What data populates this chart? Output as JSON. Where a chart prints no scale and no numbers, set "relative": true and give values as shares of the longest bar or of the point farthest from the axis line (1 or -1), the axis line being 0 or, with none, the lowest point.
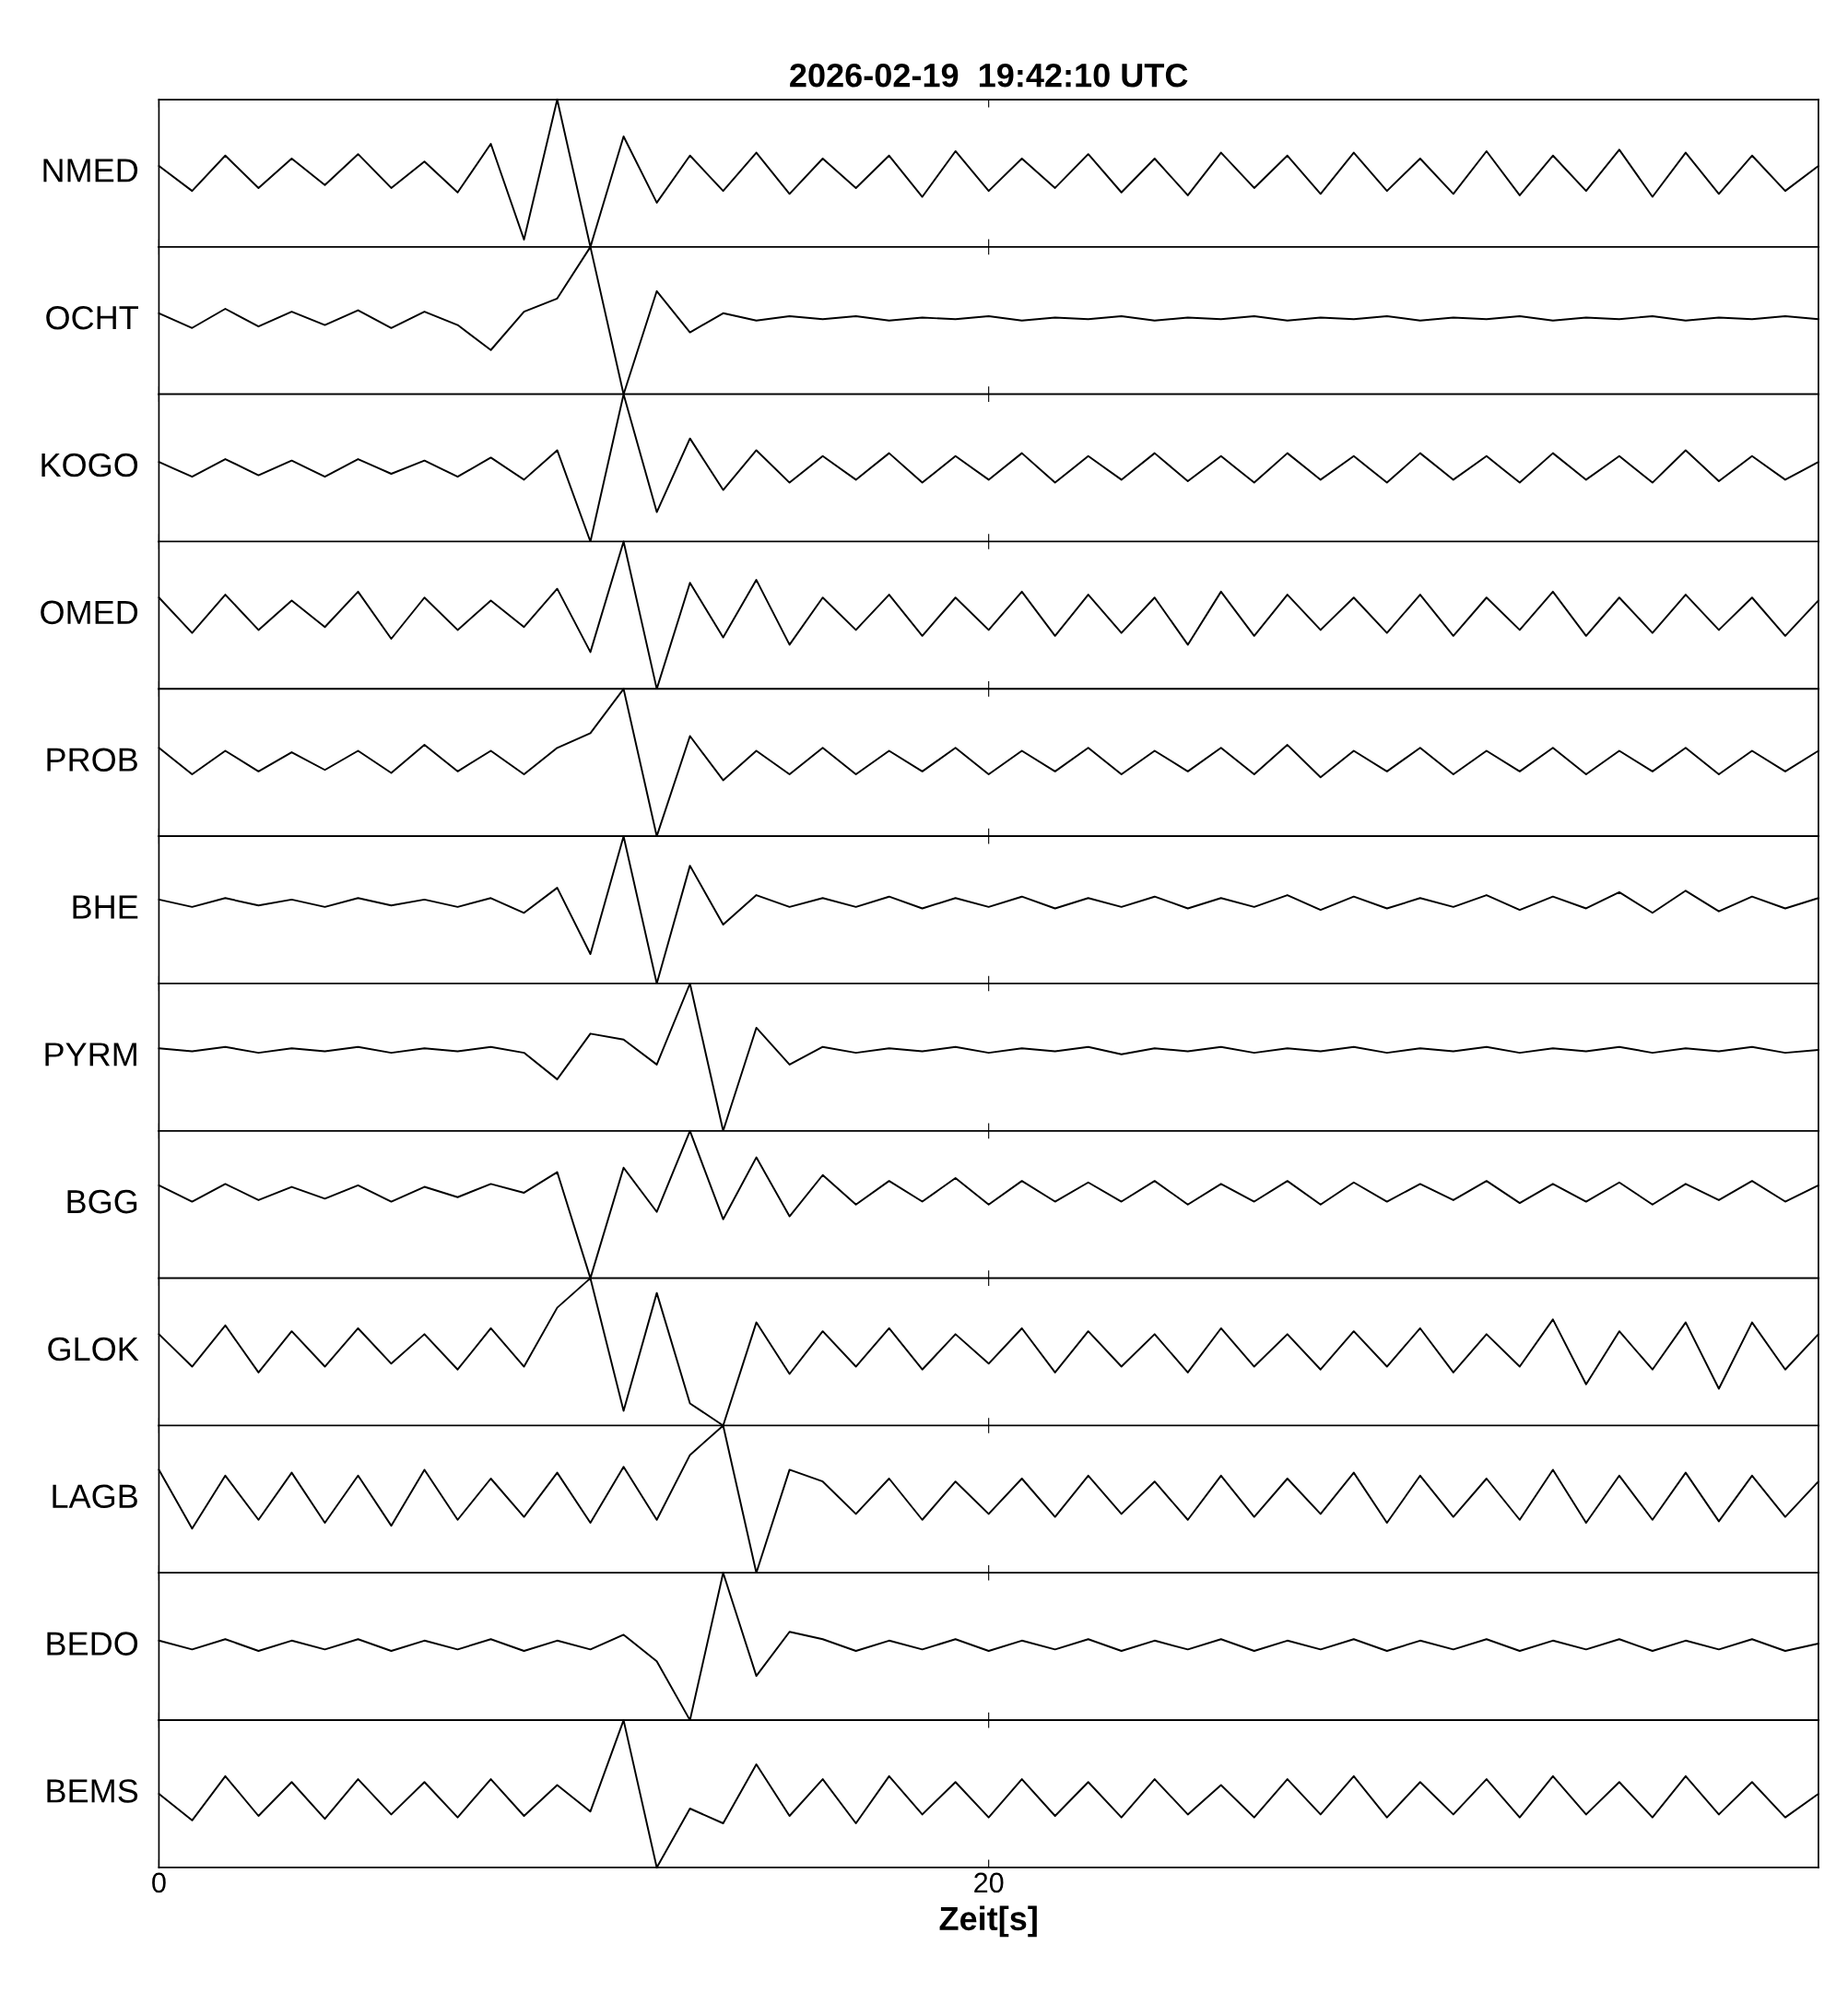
{
  "chart_data": [
    {
      "type": "line",
      "relative": true,
      "title": "2026-02-19  19:42:10 UTC",
      "ylabel": "NMED",
      "xlim": [
        0,
        40
      ],
      "xticks": [
        0,
        20
      ],
      "tick_labels": false,
      "x": [
        0,
        0.8,
        1.6,
        2.4,
        3.2,
        4,
        4.8,
        5.6,
        6.4,
        7.2,
        8,
        8.8,
        9.6,
        10.4,
        11.2,
        12,
        12.8,
        13.6,
        14.4,
        15.2,
        16,
        16.8,
        17.6,
        18.4,
        19.2,
        20,
        20.8,
        21.6,
        22.4,
        23.2,
        24,
        24.8,
        25.6,
        26.4,
        27.2,
        28,
        28.8,
        29.6,
        30.4,
        31.2,
        32,
        32.8,
        33.6,
        34.4,
        35.2,
        36,
        36.8,
        37.6,
        38.4,
        39.2,
        40
      ],
      "series": [
        {
          "color": "#000000",
          "values": [
            0.55,
            0.38,
            0.62,
            0.4,
            0.6,
            0.42,
            0.63,
            0.4,
            0.58,
            0.37,
            0.7,
            0.05,
            1.0,
            0.0,
            0.75,
            0.3,
            0.62,
            0.38,
            0.64,
            0.36,
            0.6,
            0.4,
            0.62,
            0.34,
            0.65,
            0.38,
            0.6,
            0.4,
            0.63,
            0.37,
            0.6,
            0.35,
            0.64,
            0.4,
            0.62,
            0.36,
            0.64,
            0.38,
            0.6,
            0.36,
            0.65,
            0.35,
            0.62,
            0.38,
            0.66,
            0.34,
            0.64,
            0.36,
            0.62,
            0.38,
            0.55
          ]
        }
      ]
    },
    {
      "type": "line",
      "relative": true,
      "ylabel": "OCHT",
      "xlim": [
        0,
        40
      ],
      "xticks": [
        0,
        20
      ],
      "tick_labels": false,
      "x": [
        0,
        0.8,
        1.6,
        2.4,
        3.2,
        4,
        4.8,
        5.6,
        6.4,
        7.2,
        8,
        8.8,
        9.6,
        10.4,
        11.2,
        12,
        12.8,
        13.6,
        14.4,
        15.2,
        16,
        16.8,
        17.6,
        18.4,
        19.2,
        20,
        20.8,
        21.6,
        22.4,
        23.2,
        24,
        24.8,
        25.6,
        26.4,
        27.2,
        28,
        28.8,
        29.6,
        30.4,
        31.2,
        32,
        32.8,
        33.6,
        34.4,
        35.2,
        36,
        36.8,
        37.6,
        38.4,
        39.2,
        40
      ],
      "series": [
        {
          "color": "#000000",
          "values": [
            0.55,
            0.45,
            0.58,
            0.46,
            0.56,
            0.47,
            0.57,
            0.45,
            0.56,
            0.47,
            0.3,
            0.56,
            0.65,
            1.0,
            0.0,
            0.7,
            0.42,
            0.55,
            0.5,
            0.53,
            0.51,
            0.53,
            0.5,
            0.52,
            0.51,
            0.53,
            0.5,
            0.52,
            0.51,
            0.53,
            0.5,
            0.52,
            0.51,
            0.53,
            0.5,
            0.52,
            0.51,
            0.53,
            0.5,
            0.52,
            0.51,
            0.53,
            0.5,
            0.52,
            0.51,
            0.53,
            0.5,
            0.52,
            0.51,
            0.53,
            0.51
          ]
        }
      ]
    },
    {
      "type": "line",
      "relative": true,
      "ylabel": "KOGO",
      "xlim": [
        0,
        40
      ],
      "xticks": [
        0,
        20
      ],
      "tick_labels": false,
      "x": [
        0,
        0.8,
        1.6,
        2.4,
        3.2,
        4,
        4.8,
        5.6,
        6.4,
        7.2,
        8,
        8.8,
        9.6,
        10.4,
        11.2,
        12,
        12.8,
        13.6,
        14.4,
        15.2,
        16,
        16.8,
        17.6,
        18.4,
        19.2,
        20,
        20.8,
        21.6,
        22.4,
        23.2,
        24,
        24.8,
        25.6,
        26.4,
        27.2,
        28,
        28.8,
        29.6,
        30.4,
        31.2,
        32,
        32.8,
        33.6,
        34.4,
        35.2,
        36,
        36.8,
        37.6,
        38.4,
        39.2,
        40
      ],
      "series": [
        {
          "color": "#000000",
          "values": [
            0.54,
            0.44,
            0.56,
            0.45,
            0.55,
            0.44,
            0.56,
            0.46,
            0.55,
            0.44,
            0.57,
            0.42,
            0.62,
            0.0,
            1.0,
            0.2,
            0.7,
            0.35,
            0.62,
            0.4,
            0.58,
            0.42,
            0.6,
            0.4,
            0.58,
            0.42,
            0.6,
            0.4,
            0.58,
            0.42,
            0.6,
            0.41,
            0.58,
            0.4,
            0.6,
            0.42,
            0.58,
            0.4,
            0.6,
            0.42,
            0.58,
            0.4,
            0.6,
            0.42,
            0.58,
            0.4,
            0.62,
            0.41,
            0.58,
            0.42,
            0.54
          ]
        }
      ]
    },
    {
      "type": "line",
      "relative": true,
      "ylabel": "OMED",
      "xlim": [
        0,
        40
      ],
      "xticks": [
        0,
        20
      ],
      "tick_labels": false,
      "x": [
        0,
        0.8,
        1.6,
        2.4,
        3.2,
        4,
        4.8,
        5.6,
        6.4,
        7.2,
        8,
        8.8,
        9.6,
        10.4,
        11.2,
        12,
        12.8,
        13.6,
        14.4,
        15.2,
        16,
        16.8,
        17.6,
        18.4,
        19.2,
        20,
        20.8,
        21.6,
        22.4,
        23.2,
        24,
        24.8,
        25.6,
        26.4,
        27.2,
        28,
        28.8,
        29.6,
        30.4,
        31.2,
        32,
        32.8,
        33.6,
        34.4,
        35.2,
        36,
        36.8,
        37.6,
        38.4,
        39.2,
        40
      ],
      "series": [
        {
          "color": "#000000",
          "values": [
            0.62,
            0.38,
            0.64,
            0.4,
            0.6,
            0.42,
            0.66,
            0.34,
            0.62,
            0.4,
            0.6,
            0.42,
            0.68,
            0.25,
            1.0,
            0.0,
            0.72,
            0.35,
            0.74,
            0.3,
            0.62,
            0.4,
            0.64,
            0.36,
            0.62,
            0.4,
            0.66,
            0.36,
            0.64,
            0.38,
            0.62,
            0.3,
            0.66,
            0.36,
            0.64,
            0.4,
            0.62,
            0.38,
            0.64,
            0.36,
            0.62,
            0.4,
            0.66,
            0.36,
            0.62,
            0.38,
            0.64,
            0.4,
            0.62,
            0.36,
            0.6
          ]
        }
      ]
    },
    {
      "type": "line",
      "relative": true,
      "ylabel": "PROB",
      "xlim": [
        0,
        40
      ],
      "xticks": [
        0,
        20
      ],
      "tick_labels": false,
      "x": [
        0,
        0.8,
        1.6,
        2.4,
        3.2,
        4,
        4.8,
        5.6,
        6.4,
        7.2,
        8,
        8.8,
        9.6,
        10.4,
        11.2,
        12,
        12.8,
        13.6,
        14.4,
        15.2,
        16,
        16.8,
        17.6,
        18.4,
        19.2,
        20,
        20.8,
        21.6,
        22.4,
        23.2,
        24,
        24.8,
        25.6,
        26.4,
        27.2,
        28,
        28.8,
        29.6,
        30.4,
        31.2,
        32,
        32.8,
        33.6,
        34.4,
        35.2,
        36,
        36.8,
        37.6,
        38.4,
        39.2,
        40
      ],
      "series": [
        {
          "color": "#000000",
          "values": [
            0.6,
            0.42,
            0.58,
            0.44,
            0.57,
            0.45,
            0.58,
            0.43,
            0.62,
            0.44,
            0.58,
            0.42,
            0.6,
            0.7,
            1.0,
            0.0,
            0.68,
            0.38,
            0.58,
            0.42,
            0.6,
            0.42,
            0.58,
            0.44,
            0.6,
            0.42,
            0.58,
            0.44,
            0.6,
            0.42,
            0.58,
            0.44,
            0.6,
            0.42,
            0.62,
            0.4,
            0.58,
            0.44,
            0.6,
            0.42,
            0.58,
            0.44,
            0.6,
            0.42,
            0.58,
            0.44,
            0.6,
            0.42,
            0.58,
            0.44,
            0.58
          ]
        }
      ]
    },
    {
      "type": "line",
      "relative": true,
      "ylabel": "BHE",
      "xlim": [
        0,
        40
      ],
      "xticks": [
        0,
        20
      ],
      "tick_labels": false,
      "x": [
        0,
        0.8,
        1.6,
        2.4,
        3.2,
        4,
        4.8,
        5.6,
        6.4,
        7.2,
        8,
        8.8,
        9.6,
        10.4,
        11.2,
        12,
        12.8,
        13.6,
        14.4,
        15.2,
        16,
        16.8,
        17.6,
        18.4,
        19.2,
        20,
        20.8,
        21.6,
        22.4,
        23.2,
        24,
        24.8,
        25.6,
        26.4,
        27.2,
        28,
        28.8,
        29.6,
        30.4,
        31.2,
        32,
        32.8,
        33.6,
        34.4,
        35.2,
        36,
        36.8,
        37.6,
        38.4,
        39.2,
        40
      ],
      "series": [
        {
          "color": "#000000",
          "values": [
            0.57,
            0.52,
            0.58,
            0.53,
            0.57,
            0.52,
            0.58,
            0.53,
            0.57,
            0.52,
            0.58,
            0.48,
            0.65,
            0.2,
            1.0,
            0.0,
            0.8,
            0.4,
            0.6,
            0.52,
            0.58,
            0.52,
            0.59,
            0.51,
            0.58,
            0.52,
            0.59,
            0.51,
            0.58,
            0.52,
            0.59,
            0.51,
            0.58,
            0.52,
            0.6,
            0.5,
            0.59,
            0.51,
            0.58,
            0.52,
            0.6,
            0.5,
            0.59,
            0.51,
            0.62,
            0.48,
            0.63,
            0.49,
            0.59,
            0.51,
            0.58
          ]
        }
      ]
    },
    {
      "type": "line",
      "relative": true,
      "ylabel": "PYRM",
      "xlim": [
        0,
        40
      ],
      "xticks": [
        0,
        20
      ],
      "tick_labels": false,
      "x": [
        0,
        0.8,
        1.6,
        2.4,
        3.2,
        4,
        4.8,
        5.6,
        6.4,
        7.2,
        8,
        8.8,
        9.6,
        10.4,
        11.2,
        12,
        12.8,
        13.6,
        14.4,
        15.2,
        16,
        16.8,
        17.6,
        18.4,
        19.2,
        20,
        20.8,
        21.6,
        22.4,
        23.2,
        24,
        24.8,
        25.6,
        26.4,
        27.2,
        28,
        28.8,
        29.6,
        30.4,
        31.2,
        32,
        32.8,
        33.6,
        34.4,
        35.2,
        36,
        36.8,
        37.6,
        38.4,
        39.2,
        40
      ],
      "series": [
        {
          "color": "#000000",
          "values": [
            0.56,
            0.54,
            0.57,
            0.53,
            0.56,
            0.54,
            0.57,
            0.53,
            0.56,
            0.54,
            0.57,
            0.53,
            0.35,
            0.66,
            0.62,
            0.45,
            1.0,
            0.0,
            0.7,
            0.45,
            0.57,
            0.53,
            0.56,
            0.54,
            0.57,
            0.53,
            0.56,
            0.54,
            0.57,
            0.52,
            0.56,
            0.54,
            0.57,
            0.53,
            0.56,
            0.54,
            0.57,
            0.53,
            0.56,
            0.54,
            0.57,
            0.53,
            0.56,
            0.54,
            0.57,
            0.53,
            0.56,
            0.54,
            0.57,
            0.53,
            0.55
          ]
        }
      ]
    },
    {
      "type": "line",
      "relative": true,
      "ylabel": "BGG",
      "xlim": [
        0,
        40
      ],
      "xticks": [
        0,
        20
      ],
      "tick_labels": false,
      "x": [
        0,
        0.8,
        1.6,
        2.4,
        3.2,
        4,
        4.8,
        5.6,
        6.4,
        7.2,
        8,
        8.8,
        9.6,
        10.4,
        11.2,
        12,
        12.8,
        13.6,
        14.4,
        15.2,
        16,
        16.8,
        17.6,
        18.4,
        19.2,
        20,
        20.8,
        21.6,
        22.4,
        23.2,
        24,
        24.8,
        25.6,
        26.4,
        27.2,
        28,
        28.8,
        29.6,
        30.4,
        31.2,
        32,
        32.8,
        33.6,
        34.4,
        35.2,
        36,
        36.8,
        37.6,
        38.4,
        39.2,
        40
      ],
      "series": [
        {
          "color": "#000000",
          "values": [
            0.63,
            0.52,
            0.64,
            0.53,
            0.62,
            0.54,
            0.63,
            0.52,
            0.62,
            0.55,
            0.64,
            0.58,
            0.72,
            0.0,
            0.75,
            0.45,
            1.0,
            0.4,
            0.82,
            0.42,
            0.7,
            0.5,
            0.66,
            0.52,
            0.68,
            0.5,
            0.66,
            0.52,
            0.65,
            0.52,
            0.66,
            0.5,
            0.64,
            0.52,
            0.66,
            0.5,
            0.65,
            0.52,
            0.64,
            0.53,
            0.66,
            0.51,
            0.64,
            0.52,
            0.65,
            0.5,
            0.64,
            0.53,
            0.66,
            0.52,
            0.63
          ]
        }
      ]
    },
    {
      "type": "line",
      "relative": true,
      "ylabel": "GLOK",
      "xlim": [
        0,
        40
      ],
      "xticks": [
        0,
        20
      ],
      "tick_labels": false,
      "x": [
        0,
        0.8,
        1.6,
        2.4,
        3.2,
        4,
        4.8,
        5.6,
        6.4,
        7.2,
        8,
        8.8,
        9.6,
        10.4,
        11.2,
        12,
        12.8,
        13.6,
        14.4,
        15.2,
        16,
        16.8,
        17.6,
        18.4,
        19.2,
        20,
        20.8,
        21.6,
        22.4,
        23.2,
        24,
        24.8,
        25.6,
        26.4,
        27.2,
        28,
        28.8,
        29.6,
        30.4,
        31.2,
        32,
        32.8,
        33.6,
        34.4,
        35.2,
        36,
        36.8,
        37.6,
        38.4,
        39.2,
        40
      ],
      "series": [
        {
          "color": "#000000",
          "values": [
            0.62,
            0.4,
            0.68,
            0.36,
            0.64,
            0.4,
            0.66,
            0.42,
            0.62,
            0.38,
            0.66,
            0.4,
            0.8,
            1.0,
            0.1,
            0.9,
            0.15,
            0.0,
            0.7,
            0.35,
            0.64,
            0.4,
            0.66,
            0.38,
            0.62,
            0.42,
            0.66,
            0.36,
            0.64,
            0.4,
            0.62,
            0.36,
            0.66,
            0.4,
            0.62,
            0.38,
            0.64,
            0.4,
            0.66,
            0.36,
            0.62,
            0.4,
            0.72,
            0.28,
            0.64,
            0.38,
            0.7,
            0.25,
            0.7,
            0.38,
            0.62
          ]
        }
      ]
    },
    {
      "type": "line",
      "relative": true,
      "ylabel": "LAGB",
      "xlim": [
        0,
        40
      ],
      "xticks": [
        0,
        20
      ],
      "tick_labels": false,
      "x": [
        0,
        0.8,
        1.6,
        2.4,
        3.2,
        4,
        4.8,
        5.6,
        6.4,
        7.2,
        8,
        8.8,
        9.6,
        10.4,
        11.2,
        12,
        12.8,
        13.6,
        14.4,
        15.2,
        16,
        16.8,
        17.6,
        18.4,
        19.2,
        20,
        20.8,
        21.6,
        22.4,
        23.2,
        24,
        24.8,
        25.6,
        26.4,
        27.2,
        28,
        28.8,
        29.6,
        30.4,
        31.2,
        32,
        32.8,
        33.6,
        34.4,
        35.2,
        36,
        36.8,
        37.6,
        38.4,
        39.2,
        40
      ],
      "series": [
        {
          "color": "#000000",
          "values": [
            0.7,
            0.3,
            0.66,
            0.36,
            0.68,
            0.34,
            0.66,
            0.32,
            0.7,
            0.36,
            0.64,
            0.38,
            0.68,
            0.34,
            0.72,
            0.36,
            0.8,
            1.0,
            0.0,
            0.7,
            0.62,
            0.4,
            0.64,
            0.36,
            0.62,
            0.4,
            0.64,
            0.38,
            0.66,
            0.4,
            0.62,
            0.36,
            0.66,
            0.38,
            0.64,
            0.4,
            0.68,
            0.34,
            0.66,
            0.38,
            0.64,
            0.36,
            0.7,
            0.34,
            0.66,
            0.36,
            0.68,
            0.35,
            0.66,
            0.38,
            0.62
          ]
        }
      ]
    },
    {
      "type": "line",
      "relative": true,
      "ylabel": "BEDO",
      "xlim": [
        0,
        40
      ],
      "xticks": [
        0,
        20
      ],
      "tick_labels": false,
      "x": [
        0,
        0.8,
        1.6,
        2.4,
        3.2,
        4,
        4.8,
        5.6,
        6.4,
        7.2,
        8,
        8.8,
        9.6,
        10.4,
        11.2,
        12,
        12.8,
        13.6,
        14.4,
        15.2,
        16,
        16.8,
        17.6,
        18.4,
        19.2,
        20,
        20.8,
        21.6,
        22.4,
        23.2,
        24,
        24.8,
        25.6,
        26.4,
        27.2,
        28,
        28.8,
        29.6,
        30.4,
        31.2,
        32,
        32.8,
        33.6,
        34.4,
        35.2,
        36,
        36.8,
        37.6,
        38.4,
        39.2,
        40
      ],
      "series": [
        {
          "color": "#000000",
          "values": [
            0.54,
            0.48,
            0.55,
            0.47,
            0.54,
            0.48,
            0.55,
            0.47,
            0.54,
            0.48,
            0.55,
            0.47,
            0.54,
            0.48,
            0.58,
            0.4,
            0.0,
            1.0,
            0.3,
            0.6,
            0.55,
            0.47,
            0.54,
            0.48,
            0.55,
            0.47,
            0.54,
            0.48,
            0.55,
            0.47,
            0.54,
            0.48,
            0.55,
            0.47,
            0.54,
            0.48,
            0.55,
            0.47,
            0.54,
            0.48,
            0.55,
            0.47,
            0.54,
            0.48,
            0.55,
            0.47,
            0.54,
            0.48,
            0.55,
            0.47,
            0.52
          ]
        }
      ]
    },
    {
      "type": "line",
      "relative": true,
      "ylabel": "BEMS",
      "xlabel": "Zeit[s]",
      "xlim": [
        0,
        40
      ],
      "xticks": [
        0,
        20
      ],
      "tick_labels": "x",
      "x": [
        0,
        0.8,
        1.6,
        2.4,
        3.2,
        4,
        4.8,
        5.6,
        6.4,
        7.2,
        8,
        8.8,
        9.6,
        10.4,
        11.2,
        12,
        12.8,
        13.6,
        14.4,
        15.2,
        16,
        16.8,
        17.6,
        18.4,
        19.2,
        20,
        20.8,
        21.6,
        22.4,
        23.2,
        24,
        24.8,
        25.6,
        26.4,
        27.2,
        28,
        28.8,
        29.6,
        30.4,
        31.2,
        32,
        32.8,
        33.6,
        34.4,
        35.2,
        36,
        36.8,
        37.6,
        38.4,
        39.2,
        40
      ],
      "series": [
        {
          "color": "#000000",
          "values": [
            0.5,
            0.32,
            0.62,
            0.35,
            0.58,
            0.33,
            0.6,
            0.36,
            0.58,
            0.34,
            0.6,
            0.35,
            0.56,
            0.38,
            1.0,
            0.0,
            0.4,
            0.3,
            0.7,
            0.35,
            0.6,
            0.3,
            0.62,
            0.36,
            0.58,
            0.34,
            0.6,
            0.35,
            0.58,
            0.34,
            0.6,
            0.36,
            0.56,
            0.34,
            0.6,
            0.36,
            0.62,
            0.34,
            0.58,
            0.36,
            0.6,
            0.34,
            0.62,
            0.36,
            0.58,
            0.34,
            0.62,
            0.36,
            0.58,
            0.34,
            0.5
          ]
        }
      ]
    }
  ]
}
